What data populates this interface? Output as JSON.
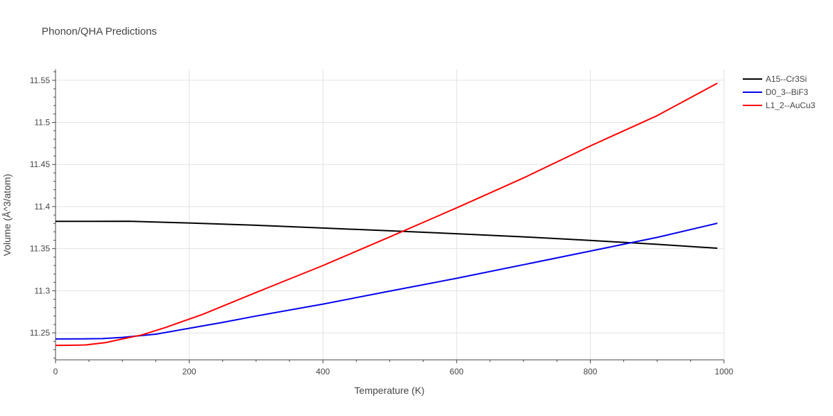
{
  "chart_data": {
    "type": "line",
    "title": "Phonon/QHA Predictions",
    "xlabel": "Temperature (K)",
    "ylabel": "Volume (Å^3/atom)",
    "xlim": [
      0,
      1000
    ],
    "ylim": [
      11.218,
      11.563
    ],
    "x_ticks": [
      0,
      200,
      400,
      600,
      800,
      1000
    ],
    "y_ticks": [
      11.25,
      11.3,
      11.35,
      11.4,
      11.45,
      11.5,
      11.55
    ],
    "x_tick_labels": [
      "0",
      "200",
      "400",
      "600",
      "800",
      "1000"
    ],
    "y_tick_labels": [
      "11.25",
      "11.3",
      "11.35",
      "11.4",
      "11.45",
      "11.5",
      "11.55"
    ],
    "grid": true,
    "legend_position": "top-right",
    "series": [
      {
        "name": "A15--Cr3Si",
        "color": "#000000",
        "points": [
          [
            0,
            11.3825
          ],
          [
            60,
            11.3825
          ],
          [
            110,
            11.3826
          ],
          [
            200,
            11.3805
          ],
          [
            300,
            11.3778
          ],
          [
            400,
            11.3745
          ],
          [
            500,
            11.3712
          ],
          [
            600,
            11.3678
          ],
          [
            700,
            11.3641
          ],
          [
            800,
            11.3598
          ],
          [
            900,
            11.3552
          ],
          [
            990,
            11.3506
          ]
        ]
      },
      {
        "name": "D0_3--BiF3",
        "color": "#0000ee",
        "points": [
          [
            0,
            11.2428
          ],
          [
            40,
            11.2429
          ],
          [
            70,
            11.2432
          ],
          [
            100,
            11.2447
          ],
          [
            150,
            11.2485
          ],
          [
            200,
            11.2555
          ],
          [
            250,
            11.2625
          ],
          [
            300,
            11.27
          ],
          [
            400,
            11.2842
          ],
          [
            500,
            11.2996
          ],
          [
            600,
            11.3148
          ],
          [
            700,
            11.331
          ],
          [
            800,
            11.3472
          ],
          [
            900,
            11.3634
          ],
          [
            990,
            11.3802
          ]
        ]
      },
      {
        "name": "L1_2--AuCu3",
        "color": "#ff0000",
        "points": [
          [
            0,
            11.2352
          ],
          [
            30,
            11.2354
          ],
          [
            45,
            11.2357
          ],
          [
            75,
            11.2385
          ],
          [
            100,
            11.2428
          ],
          [
            130,
            11.2478
          ],
          [
            165,
            11.2565
          ],
          [
            220,
            11.272
          ],
          [
            300,
            11.298
          ],
          [
            400,
            11.33
          ],
          [
            500,
            11.364
          ],
          [
            600,
            11.3985
          ],
          [
            700,
            11.434
          ],
          [
            800,
            11.472
          ],
          [
            900,
            11.508
          ],
          [
            990,
            11.5465
          ]
        ]
      }
    ]
  }
}
